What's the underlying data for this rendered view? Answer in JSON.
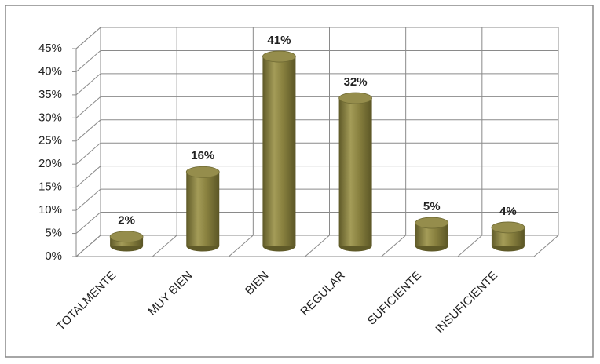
{
  "chart_data": {
    "type": "bar",
    "categories": [
      "TOTALMENTE",
      "MUY BIEN",
      "BIEN",
      "REGULAR",
      "SUFICIENTE",
      "INSUFICIENTE"
    ],
    "values": [
      2,
      16,
      41,
      32,
      5,
      4
    ],
    "value_labels": [
      "2%",
      "16%",
      "41%",
      "32%",
      "5%",
      "4%"
    ],
    "color": "#8a8240",
    "ylim": [
      0,
      45
    ],
    "yticks": [
      {
        "value": 0,
        "label": "0%"
      },
      {
        "value": 5,
        "label": "5%"
      },
      {
        "value": 10,
        "label": "10%"
      },
      {
        "value": 15,
        "label": "15%"
      },
      {
        "value": 20,
        "label": "20%"
      },
      {
        "value": 25,
        "label": "25%"
      },
      {
        "value": 30,
        "label": "30%"
      },
      {
        "value": 35,
        "label": "35%"
      },
      {
        "value": 40,
        "label": "40%"
      },
      {
        "value": 45,
        "label": "45%"
      }
    ],
    "grid": true
  }
}
